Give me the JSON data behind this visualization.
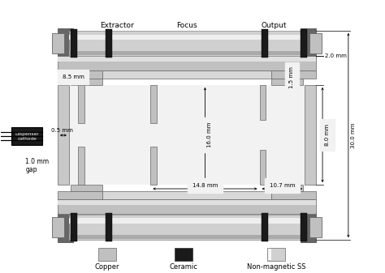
{
  "bg_color": "#ffffff",
  "copper_color": "#c0c0c0",
  "copper_dark": "#909090",
  "copper_light": "#d8d8d8",
  "ceramic_color": "#1a1a1a",
  "ss_grad_light": "#f0f0f0",
  "ss_grad_mid": "#c8c8c8",
  "rod_light": "#e0e0e0",
  "rod_mid": "#c0c0c0",
  "rod_dark": "#808080",
  "rod_shadow": "#606060",
  "frame_color": "#b0b0b0",
  "labels": {
    "extractor": "Extractor",
    "focus": "Focus",
    "output": "Output",
    "dispenser": "Dispenser\ncathode",
    "gap": "1.0 mm\ngap",
    "copper": "Copper",
    "ceramic": "Ceramic",
    "ss": "Non-magnetic SS"
  },
  "dims": {
    "d85": "8.5 mm",
    "d05": "0.5 mm",
    "d160": "16.0 mm",
    "d148": "14.8 mm",
    "d107": "10.7 mm",
    "d15": "1.5 mm",
    "d20": "2.0 mm",
    "d80": "8.0 mm",
    "d300": "30.0 mm"
  }
}
